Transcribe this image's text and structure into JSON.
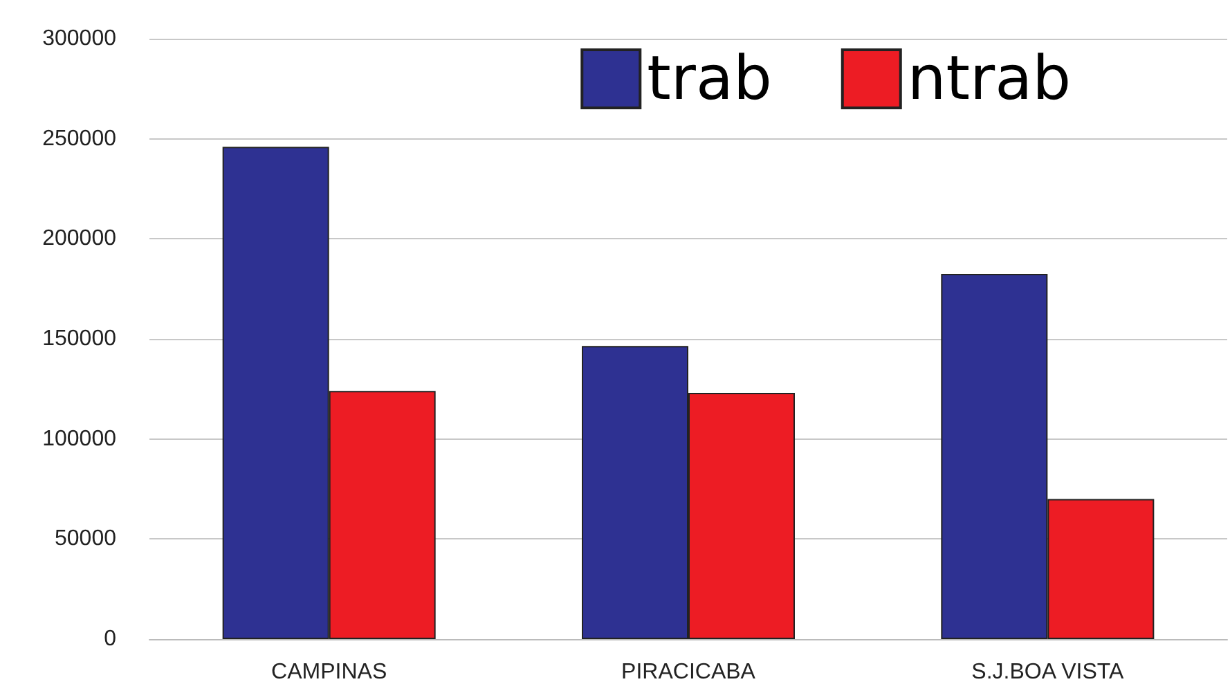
{
  "chart_data": {
    "type": "bar",
    "categories": [
      "CAMPINAS",
      "PIRACICABA",
      "S.J.BOA VISTA"
    ],
    "series": [
      {
        "name": "trab",
        "color": "#2e3192",
        "values": [
          246000,
          146500,
          182500
        ]
      },
      {
        "name": "ntrab",
        "color": "#ed1c24",
        "values": [
          124000,
          123000,
          70000
        ]
      }
    ],
    "ylim": [
      0,
      300000
    ],
    "yticks": [
      0,
      50000,
      100000,
      150000,
      200000,
      250000,
      300000
    ],
    "grid": "y",
    "legend": "top right"
  }
}
